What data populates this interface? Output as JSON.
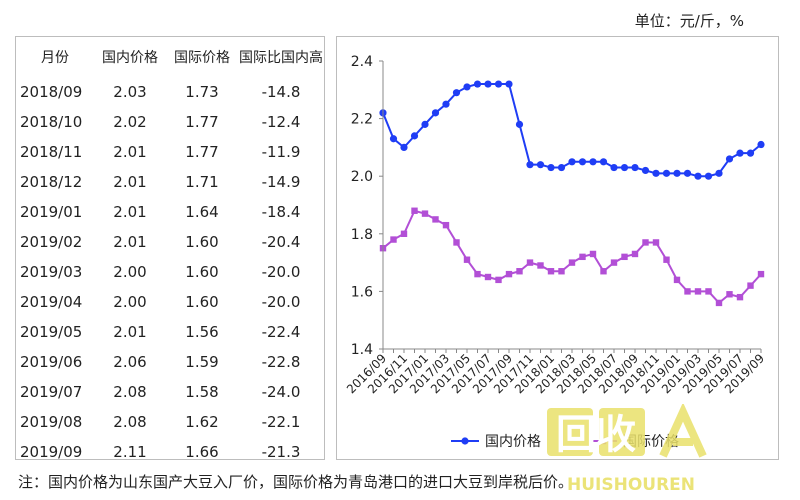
{
  "unit_label": "单位：元/斤，%",
  "table": {
    "headers": [
      "月份",
      "国内价格",
      "国际价格",
      "国际比国内高"
    ],
    "rows": [
      [
        "2018/09",
        "2.03",
        "1.73",
        "-14.8"
      ],
      [
        "2018/10",
        "2.02",
        "1.77",
        "-12.4"
      ],
      [
        "2018/11",
        "2.01",
        "1.77",
        "-11.9"
      ],
      [
        "2018/12",
        "2.01",
        "1.71",
        "-14.9"
      ],
      [
        "2019/01",
        "2.01",
        "1.64",
        "-18.4"
      ],
      [
        "2019/02",
        "2.01",
        "1.60",
        "-20.4"
      ],
      [
        "2019/03",
        "2.00",
        "1.60",
        "-20.0"
      ],
      [
        "2019/04",
        "2.00",
        "1.60",
        "-20.0"
      ],
      [
        "2019/05",
        "2.01",
        "1.56",
        "-22.4"
      ],
      [
        "2019/06",
        "2.06",
        "1.59",
        "-22.8"
      ],
      [
        "2019/07",
        "2.08",
        "1.58",
        "-24.0"
      ],
      [
        "2019/08",
        "2.08",
        "1.62",
        "-22.1"
      ],
      [
        "2019/09",
        "2.11",
        "1.66",
        "-21.3"
      ]
    ]
  },
  "note": "注：国内价格为山东国产大豆入厂价，国际价格为青岛港口的进口大豆到岸税后价。",
  "watermark": {
    "text": "回收",
    "subtext": "HUISHOUREN"
  },
  "colors": {
    "domestic": "#1f3df5",
    "international": "#b24fd6",
    "axis": "#888888",
    "text": "#222222"
  },
  "chart_data": {
    "type": "line",
    "x": [
      "2016/09",
      "2016/10",
      "2016/11",
      "2016/12",
      "2017/01",
      "2017/02",
      "2017/03",
      "2017/04",
      "2017/05",
      "2017/06",
      "2017/07",
      "2017/08",
      "2017/09",
      "2017/10",
      "2017/11",
      "2017/12",
      "2018/01",
      "2018/02",
      "2018/03",
      "2018/04",
      "2018/05",
      "2018/06",
      "2018/07",
      "2018/08",
      "2018/09",
      "2018/10",
      "2018/11",
      "2018/12",
      "2019/01",
      "2019/02",
      "2019/03",
      "2019/04",
      "2019/05",
      "2019/06",
      "2019/07",
      "2019/08",
      "2019/09"
    ],
    "x_tick_labels": [
      "2016/09",
      "2016/11",
      "2017/01",
      "2017/03",
      "2017/05",
      "2017/07",
      "2017/09",
      "2017/11",
      "2018/01",
      "2018/03",
      "2018/05",
      "2018/07",
      "2018/09",
      "2018/11",
      "2019/01",
      "2019/03",
      "2019/05",
      "2019/07",
      "2019/09"
    ],
    "y_ticks": [
      "1.4",
      "1.6",
      "1.8",
      "2.0",
      "2.2",
      "2.4"
    ],
    "ylim": [
      1.4,
      2.4
    ],
    "series": [
      {
        "name": "国内价格",
        "color": "#1f3df5",
        "values": [
          2.22,
          2.13,
          2.1,
          2.14,
          2.18,
          2.22,
          2.25,
          2.29,
          2.31,
          2.32,
          2.32,
          2.32,
          2.32,
          2.18,
          2.04,
          2.04,
          2.03,
          2.03,
          2.05,
          2.05,
          2.05,
          2.05,
          2.03,
          2.03,
          2.03,
          2.02,
          2.01,
          2.01,
          2.01,
          2.01,
          2.0,
          2.0,
          2.01,
          2.06,
          2.08,
          2.08,
          2.11
        ]
      },
      {
        "name": "国际价格",
        "color": "#b24fd6",
        "values": [
          1.75,
          1.78,
          1.8,
          1.88,
          1.87,
          1.85,
          1.83,
          1.77,
          1.71,
          1.66,
          1.65,
          1.64,
          1.66,
          1.67,
          1.7,
          1.69,
          1.67,
          1.67,
          1.7,
          1.72,
          1.73,
          1.67,
          1.7,
          1.72,
          1.73,
          1.77,
          1.77,
          1.71,
          1.64,
          1.6,
          1.6,
          1.6,
          1.56,
          1.59,
          1.58,
          1.62,
          1.66
        ]
      }
    ],
    "legend": {
      "position": "bottom"
    }
  }
}
